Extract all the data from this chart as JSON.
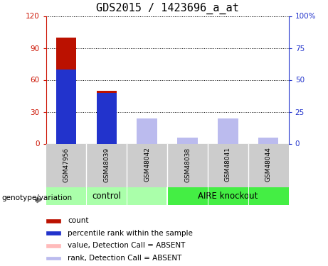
{
  "title": "GDS2015 / 1423696_a_at",
  "samples": [
    "GSM47956",
    "GSM48039",
    "GSM48042",
    "GSM48038",
    "GSM48041",
    "GSM48044"
  ],
  "group_labels": [
    "control",
    "AIRE knockout"
  ],
  "count_values": [
    100,
    50,
    0,
    0,
    0,
    0
  ],
  "rank_values": [
    58,
    40,
    0,
    0,
    0,
    0
  ],
  "absent_value": [
    0,
    0,
    17,
    5,
    17,
    5
  ],
  "absent_rank": [
    0,
    0,
    20,
    5,
    20,
    5
  ],
  "bar_width": 0.5,
  "ylim_left": [
    0,
    120
  ],
  "ylim_right": [
    0,
    100
  ],
  "yticks_left": [
    0,
    30,
    60,
    90,
    120
  ],
  "yticks_right": [
    0,
    25,
    50,
    75,
    100
  ],
  "yticklabels_left": [
    "0",
    "30",
    "60",
    "90",
    "120"
  ],
  "yticklabels_right": [
    "0",
    "25",
    "50",
    "75",
    "100%"
  ],
  "color_count": "#bb1100",
  "color_rank": "#2233cc",
  "color_absent_value": "#ffbbbb",
  "color_absent_rank": "#bbbbee",
  "color_left_axis": "#cc1100",
  "color_right_axis": "#2233cc",
  "color_bg_control": "#aaffaa",
  "color_bg_knockout": "#44ee44",
  "color_sample_bg": "#cccccc",
  "group_label_fontsize": 8.5,
  "title_fontsize": 11,
  "tick_fontsize": 7.5,
  "legend_fontsize": 7.5,
  "xlabel": "genotype/variation"
}
